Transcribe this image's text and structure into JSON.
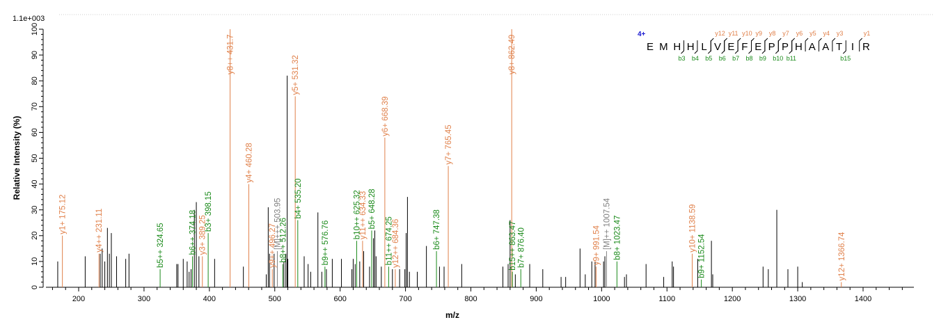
{
  "chart_data": {
    "type": "bar",
    "max_intensity_label": "1.1e+003",
    "xlabel": "m/z",
    "ylabel": "Relative   Intensity (%)",
    "xlim": [
      150,
      1470
    ],
    "ylim": [
      0,
      100
    ],
    "xticks": [
      200,
      300,
      400,
      500,
      600,
      700,
      800,
      900,
      1000,
      1100,
      1200,
      1300,
      1400
    ],
    "yticks": [
      0,
      10,
      20,
      30,
      40,
      50,
      60,
      70,
      80,
      90,
      100
    ],
    "colors": {
      "y": "#e0804a",
      "b": "#1a8a1a",
      "other": "#808080",
      "unassigned": "#000000",
      "charge": "#1a1ad0"
    },
    "annotated_peaks": [
      {
        "mz": 175.12,
        "i": 20,
        "type": "y",
        "label": "y1+ 175.12"
      },
      {
        "mz": 231.11,
        "i": 13,
        "type": "y",
        "label": "y4++ 231.11"
      },
      {
        "mz": 324.65,
        "i": 7,
        "type": "b",
        "label": "b5++ 324.65"
      },
      {
        "mz": 374.18,
        "i": 12,
        "type": "b",
        "label": "b6++ 374.18"
      },
      {
        "mz": 389.25,
        "i": 12,
        "type": "y",
        "label": "y3+ 389.25"
      },
      {
        "mz": 398.15,
        "i": 21,
        "type": "b",
        "label": "b3+ 398.15"
      },
      {
        "mz": 431.7,
        "i": 100,
        "type": "y",
        "label": "y8++ 431.7"
      },
      {
        "mz": 460.28,
        "i": 40,
        "type": "y",
        "label": "y4+ 460.28"
      },
      {
        "mz": 496.27,
        "i": 7,
        "type": "y",
        "label": "y9++ 496.27"
      },
      {
        "mz": 503.95,
        "i": 14,
        "type": "other",
        "label": "[M]+++ 503.95"
      },
      {
        "mz": 512.26,
        "i": 9,
        "type": "b",
        "label": "b8++ 512.26"
      },
      {
        "mz": 531.32,
        "i": 74,
        "type": "y",
        "label": "y5+ 531.32"
      },
      {
        "mz": 535.2,
        "i": 26,
        "type": "b",
        "label": "b4+ 535.20"
      },
      {
        "mz": 576.76,
        "i": 8,
        "type": "b",
        "label": "b9++ 576.76"
      },
      {
        "mz": 625.32,
        "i": 18,
        "type": "b",
        "label": "b10++ 625.32"
      },
      {
        "mz": 634.33,
        "i": 18,
        "type": "y",
        "label": "y11++ 634.33"
      },
      {
        "mz": 648.28,
        "i": 22,
        "type": "b",
        "label": "b5+ 648.28"
      },
      {
        "mz": 668.39,
        "i": 58,
        "type": "y",
        "label": "y6+ 668.39"
      },
      {
        "mz": 674.25,
        "i": 8,
        "type": "b",
        "label": "b11++ 674.25"
      },
      {
        "mz": 684.36,
        "i": 7,
        "type": "y",
        "label": "y12++ 684.36"
      },
      {
        "mz": 747.38,
        "i": 14,
        "type": "b",
        "label": "b6+ 747.38"
      },
      {
        "mz": 765.45,
        "i": 47,
        "type": "y",
        "label": "y7+ 765.45"
      },
      {
        "mz": 862.49,
        "i": 100,
        "type": "y",
        "label": "y8+ 862.49"
      },
      {
        "mz": 863.47,
        "i": 6,
        "type": "b",
        "label": "b15++ 863.47"
      },
      {
        "mz": 876.4,
        "i": 7,
        "type": "b",
        "label": "b7+ 876.40"
      },
      {
        "mz": 991.54,
        "i": 8,
        "type": "y",
        "label": "y9+ 991.54"
      },
      {
        "mz": 1007.54,
        "i": 14,
        "type": "other",
        "label": "[M]++ 1007.54"
      },
      {
        "mz": 1023.47,
        "i": 10,
        "type": "b",
        "label": "b8+ 1023.47"
      },
      {
        "mz": 1138.59,
        "i": 13,
        "type": "y",
        "label": "y10+ 1138.59"
      },
      {
        "mz": 1152.54,
        "i": 3,
        "type": "b",
        "label": "b9+ 1152.54"
      },
      {
        "mz": 1366.74,
        "i": 2,
        "type": "y",
        "label": "y12+ 1366.74"
      }
    ],
    "unassigned_peaks": [
      [
        168,
        10
      ],
      [
        210,
        12
      ],
      [
        233,
        13
      ],
      [
        236,
        15
      ],
      [
        240,
        10
      ],
      [
        244,
        23
      ],
      [
        247,
        13
      ],
      [
        250,
        21
      ],
      [
        258,
        12
      ],
      [
        272,
        11
      ],
      [
        277,
        13
      ],
      [
        350,
        9
      ],
      [
        352,
        9
      ],
      [
        360,
        11
      ],
      [
        366,
        10
      ],
      [
        369,
        6
      ],
      [
        372,
        7
      ],
      [
        377,
        30
      ],
      [
        380,
        33
      ],
      [
        384,
        12
      ],
      [
        408,
        11
      ],
      [
        452,
        8
      ],
      [
        487,
        5
      ],
      [
        490,
        31
      ],
      [
        492,
        13
      ],
      [
        499,
        13
      ],
      [
        514,
        10
      ],
      [
        517,
        13
      ],
      [
        519,
        82
      ],
      [
        520,
        11
      ],
      [
        545,
        12
      ],
      [
        551,
        9
      ],
      [
        555,
        6
      ],
      [
        566,
        29
      ],
      [
        572,
        6
      ],
      [
        579,
        7
      ],
      [
        588,
        11
      ],
      [
        602,
        11
      ],
      [
        618,
        7
      ],
      [
        620,
        11
      ],
      [
        623,
        9
      ],
      [
        630,
        10
      ],
      [
        636,
        14
      ],
      [
        645,
        8
      ],
      [
        651,
        19
      ],
      [
        653,
        22
      ],
      [
        655,
        12
      ],
      [
        663,
        8
      ],
      [
        680,
        7
      ],
      [
        691,
        7
      ],
      [
        699,
        7
      ],
      [
        701,
        21
      ],
      [
        703,
        35
      ],
      [
        706,
        6
      ],
      [
        718,
        6
      ],
      [
        732,
        16
      ],
      [
        752,
        8
      ],
      [
        759,
        8
      ],
      [
        786,
        9
      ],
      [
        849,
        8
      ],
      [
        857,
        9
      ],
      [
        860,
        26
      ],
      [
        868,
        5
      ],
      [
        890,
        9
      ],
      [
        910,
        7
      ],
      [
        938,
        4
      ],
      [
        945,
        4
      ],
      [
        967,
        15
      ],
      [
        975,
        5
      ],
      [
        985,
        10
      ],
      [
        990,
        10
      ],
      [
        1003,
        10
      ],
      [
        1005,
        12
      ],
      [
        1035,
        4
      ],
      [
        1038,
        5
      ],
      [
        1068,
        9
      ],
      [
        1095,
        4
      ],
      [
        1108,
        10
      ],
      [
        1110,
        8
      ],
      [
        1147,
        11
      ],
      [
        1168,
        18
      ],
      [
        1170,
        5
      ],
      [
        1247,
        8
      ],
      [
        1255,
        7
      ],
      [
        1268,
        30
      ],
      [
        1285,
        7
      ],
      [
        1300,
        8
      ],
      [
        1307,
        2
      ]
    ]
  },
  "peptide": {
    "charge": "4+",
    "sequence": [
      "E",
      "M",
      "H",
      "H",
      "L",
      "V",
      "E",
      "F",
      "E",
      "P",
      "P",
      "H",
      "A",
      "A",
      "T",
      "I",
      "R"
    ],
    "y_ions": [
      {
        "label": "y12",
        "after": 4
      },
      {
        "label": "y11",
        "after": 5
      },
      {
        "label": "y10",
        "after": 6
      },
      {
        "label": "y9",
        "after": 7
      },
      {
        "label": "y8",
        "after": 8
      },
      {
        "label": "y7",
        "after": 9
      },
      {
        "label": "y6",
        "after": 10
      },
      {
        "label": "y5",
        "after": 11
      },
      {
        "label": "y4",
        "after": 12
      },
      {
        "label": "y3",
        "after": 13
      },
      {
        "label": "y1",
        "after": 15
      }
    ],
    "b_ions": [
      {
        "label": "b3",
        "after": 2
      },
      {
        "label": "b4",
        "after": 3
      },
      {
        "label": "b5",
        "after": 4
      },
      {
        "label": "b6",
        "after": 5
      },
      {
        "label": "b7",
        "after": 6
      },
      {
        "label": "b8",
        "after": 7
      },
      {
        "label": "b9",
        "after": 8
      },
      {
        "label": "b10",
        "after": 9
      },
      {
        "label": "b11",
        "after": 10
      },
      {
        "label": "b15",
        "after": 14
      }
    ]
  }
}
